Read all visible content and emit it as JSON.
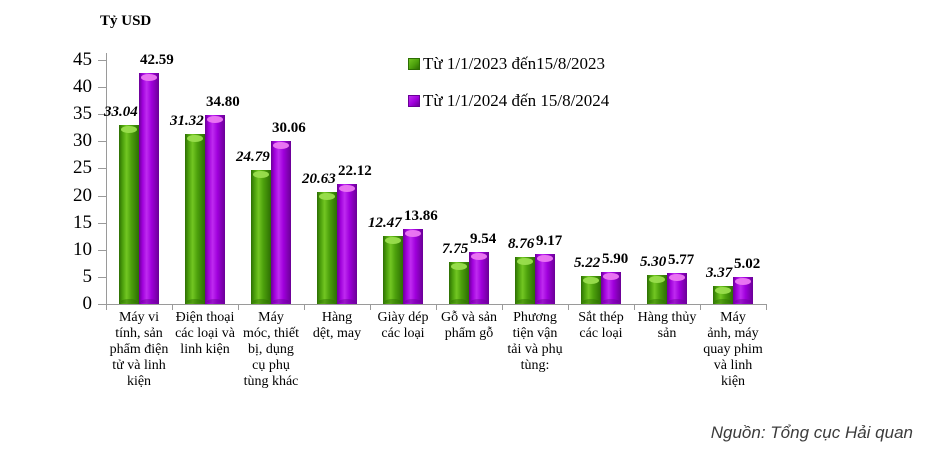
{
  "unit_label": "Tỷ USD",
  "source_note": "Nguồn: Tổng cục Hải quan",
  "chart_data": {
    "type": "bar",
    "title": "",
    "ylabel": "Tỷ USD",
    "xlabel": "",
    "ylim": [
      0,
      45
    ],
    "ytick_step": 5,
    "yticks": [
      0,
      5,
      10,
      15,
      20,
      25,
      30,
      35,
      40,
      45
    ],
    "grid": false,
    "legend_position": "top-right",
    "value_label_format": "0.00",
    "categories": [
      "Máy vi tính, sản phẩm điện tử và linh kiện",
      "Điện thoại các loại và linh kiện",
      "Máy móc, thiết bị, dụng cụ phụ tùng khác",
      "Hàng dệt, may",
      "Giày dép các loại",
      "Gỗ và sản phẩm gỗ",
      "Phương tiện vận tải và phụ tùng:",
      "Sắt thép các loại",
      "Hàng thủy sản",
      "Máy ảnh, máy quay phim và linh kiện"
    ],
    "category_label_lines": [
      [
        "Máy vi",
        "tính, sản",
        "phẩm điện",
        "tử và linh",
        "kiện"
      ],
      [
        "Điện thoại",
        "các loại và",
        "linh kiện"
      ],
      [
        "Máy",
        "móc, thiết",
        "bị, dụng",
        "cụ phụ",
        "tùng khác"
      ],
      [
        "Hàng",
        "dệt, may"
      ],
      [
        "Giày dép",
        "các loại"
      ],
      [
        "Gỗ và sản",
        "phẩm gỗ"
      ],
      [
        "Phương",
        "tiện vận",
        "tải và phụ",
        "tùng:"
      ],
      [
        "Sắt thép",
        "các loại"
      ],
      [
        "Hàng thủy",
        "sản"
      ],
      [
        "Máy",
        "ảnh, máy",
        "quay phim",
        "và linh",
        "kiện"
      ]
    ],
    "series": [
      {
        "name": "Từ 1/1/2023 đến15/8/2023",
        "label_style": "bold-italic",
        "colors": {
          "dark": "#2d6e03",
          "main": "#4ca00c",
          "light": "#72c622",
          "highlight": "#9ade4e"
        },
        "values": [
          33.04,
          31.32,
          24.79,
          20.63,
          12.47,
          7.75,
          8.76,
          5.22,
          5.3,
          3.37
        ]
      },
      {
        "name": "Từ 1/1/2024 đến 15/8/2024",
        "label_style": "bold",
        "colors": {
          "dark": "#6a0096",
          "main": "#a000dc",
          "light": "#bf2bf0",
          "highlight": "#ec79f2"
        },
        "values": [
          42.59,
          34.8,
          30.06,
          22.12,
          13.86,
          9.54,
          9.17,
          5.9,
          5.77,
          5.02
        ]
      }
    ]
  }
}
